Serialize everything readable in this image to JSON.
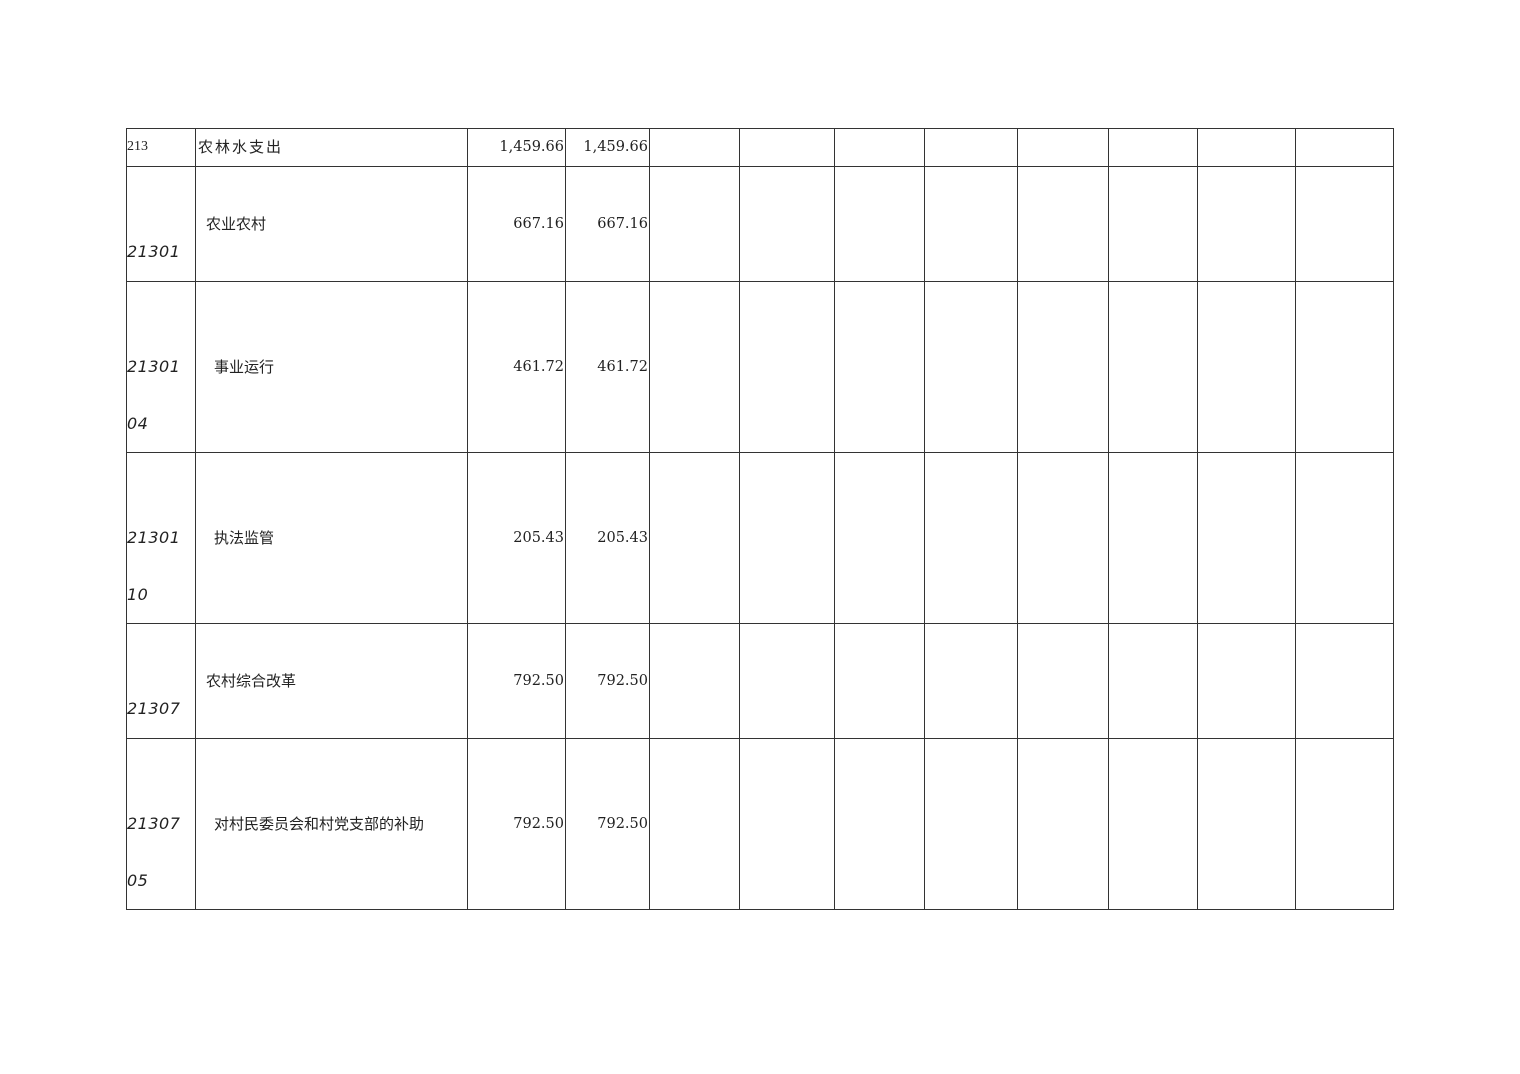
{
  "table": {
    "rows": [
      {
        "code": [
          "213"
        ],
        "name": "农林水支出",
        "values": [
          "1,459.66",
          "1,459.66",
          "",
          "",
          "",
          "",
          "",
          "",
          "",
          "",
          ""
        ]
      },
      {
        "code": [
          "21301"
        ],
        "name": "农业农村",
        "values": [
          "667.16",
          "667.16",
          "",
          "",
          "",
          "",
          "",
          "",
          "",
          "",
          ""
        ]
      },
      {
        "code": [
          "21301",
          "04"
        ],
        "name": "事业运行",
        "values": [
          "461.72",
          "461.72",
          "",
          "",
          "",
          "",
          "",
          "",
          "",
          "",
          ""
        ]
      },
      {
        "code": [
          "21301",
          "10"
        ],
        "name": "执法监管",
        "values": [
          "205.43",
          "205.43",
          "",
          "",
          "",
          "",
          "",
          "",
          "",
          "",
          ""
        ]
      },
      {
        "code": [
          "21307"
        ],
        "name": "农村综合改革",
        "values": [
          "792.50",
          "792.50",
          "",
          "",
          "",
          "",
          "",
          "",
          "",
          "",
          ""
        ]
      },
      {
        "code": [
          "21307",
          "05"
        ],
        "name": "对村民委员会和村党支部的补助",
        "values": [
          "792.50",
          "792.50",
          "",
          "",
          "",
          "",
          "",
          "",
          "",
          "",
          ""
        ]
      }
    ]
  }
}
